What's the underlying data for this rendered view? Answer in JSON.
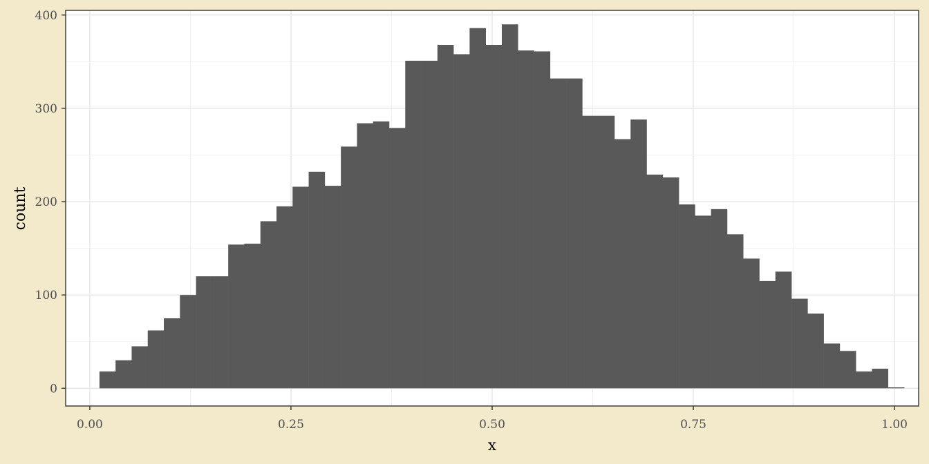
{
  "chart_data": {
    "type": "bar",
    "subtype": "histogram",
    "title": "",
    "xlabel": "x",
    "ylabel": "count",
    "xlim": [
      -0.03,
      1.03
    ],
    "ylim": [
      -19,
      405
    ],
    "x_ticks": [
      0,
      0.25,
      0.5,
      0.75,
      1
    ],
    "x_tick_labels": [
      "0.00",
      "0.25",
      "0.50",
      "0.75",
      "1.00"
    ],
    "y_ticks": [
      0,
      100,
      200,
      300,
      400
    ],
    "y_tick_labels": [
      "0",
      "100",
      "200",
      "300",
      "400"
    ],
    "grid": true,
    "bin_start": 0.012,
    "bin_width": 0.02,
    "bar_color": "#595959",
    "background_color": "#f3e9cb",
    "panel_color": "#ffffff",
    "values": [
      18,
      30,
      45,
      62,
      75,
      100,
      120,
      120,
      154,
      155,
      179,
      195,
      216,
      232,
      217,
      259,
      284,
      286,
      279,
      351,
      351,
      368,
      358,
      386,
      368,
      390,
      362,
      361,
      332,
      332,
      292,
      292,
      267,
      288,
      229,
      226,
      197,
      185,
      192,
      165,
      139,
      115,
      125,
      96,
      80,
      48,
      40,
      18,
      21,
      1
    ]
  }
}
